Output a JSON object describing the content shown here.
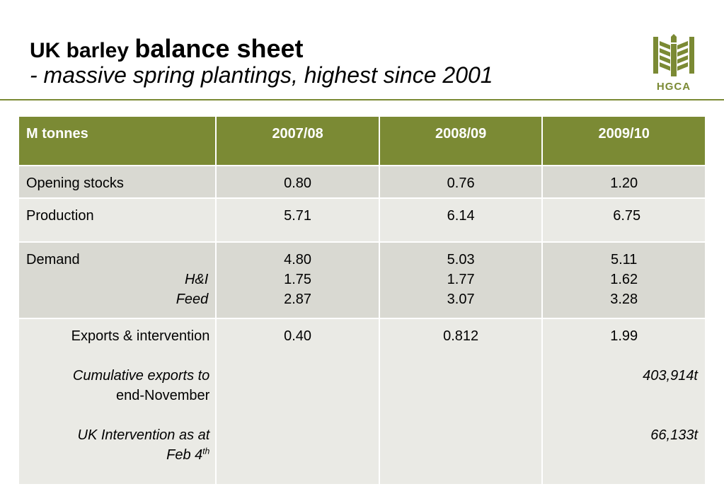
{
  "title": {
    "prefix": "UK barley ",
    "main": "balance sheet",
    "subtitle": "- massive spring plantings, highest since 2001"
  },
  "logo": {
    "text": "HGCA",
    "color": "#7b8a34"
  },
  "colors": {
    "header_bg": "#7b8a34",
    "row_dark": "#d9d9d2",
    "row_light": "#eaeae5"
  },
  "table": {
    "headers": [
      "M tonnes",
      "2007/08",
      "2008/09",
      "2009/10"
    ],
    "opening": {
      "label": "Opening stocks",
      "values": [
        "0.80",
        "0.76",
        "1.20"
      ]
    },
    "production": {
      "label": "Production",
      "values": [
        "5.71",
        "6.14",
        "6.75"
      ]
    },
    "demand": {
      "label": "Demand",
      "sub1": "H&I",
      "sub2": "Feed",
      "col1": [
        "4.80",
        "1.75",
        "2.87"
      ],
      "col2": [
        "5.03",
        "1.77",
        "3.07"
      ],
      "col3": [
        "5.11",
        "1.62",
        "3.28"
      ]
    },
    "exports": {
      "label": "Exports & intervention",
      "cum_line1": "Cumulative exports to",
      "cum_line2": "end-November",
      "int_line1": "UK Intervention as at",
      "int_line2": "Feb 4",
      "int_sup": "th",
      "values": [
        "0.40",
        "0.812",
        "1.99"
      ],
      "cum_value": "403,914t",
      "int_value": "66,133t"
    }
  }
}
